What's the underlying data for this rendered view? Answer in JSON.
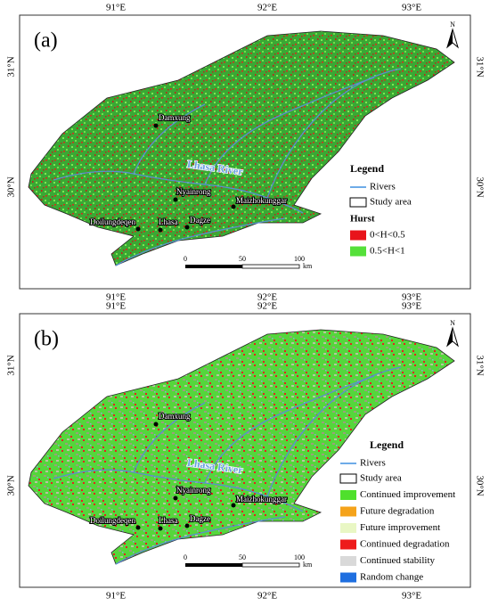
{
  "panels": [
    {
      "label": "(a)",
      "x_labels": [
        "91°E",
        "92°E",
        "93°E"
      ],
      "y_labels": [
        "30°N",
        "31°N"
      ],
      "north": "N",
      "river_label": "Lhasa River",
      "places": [
        "Damxung",
        "Nyainrong",
        "Maizhokunggar",
        "Doilungdeqen",
        "Lhasa",
        "Dagze"
      ],
      "scale": {
        "ticks": [
          "0",
          "50",
          "100"
        ],
        "unit": "km"
      },
      "legend": {
        "title": "Legend",
        "items": [
          "Rivers",
          "Study area"
        ],
        "subtitle": "Hurst",
        "classes": [
          {
            "label": "0<H<0.5",
            "color": "#e8141b"
          },
          {
            "label": "0.5<H<1",
            "color": "#55e03a"
          }
        ]
      }
    },
    {
      "label": "(b)",
      "x_labels": [
        "91°E",
        "92°E",
        "93°E"
      ],
      "y_labels": [
        "30°N",
        "31°N"
      ],
      "north": "N",
      "river_label": "Lhasa River",
      "places": [
        "Damxung",
        "Nyainrong",
        "Maizhokunggar",
        "Doilungdeqen",
        "Lhasa",
        "Dagze"
      ],
      "scale": {
        "ticks": [
          "0",
          "50",
          "100"
        ],
        "unit": "km"
      },
      "legend": {
        "title": "Legend",
        "items": [
          "Rivers",
          "Study area"
        ],
        "classes": [
          {
            "label": "Continued improvement",
            "color": "#4fe02c"
          },
          {
            "label": "Future degradation",
            "color": "#f5a31a"
          },
          {
            "label": "Future improvement",
            "color": "#e9f7c4"
          },
          {
            "label": "Continued degradation",
            "color": "#ee1b1b"
          },
          {
            "label": "Continued stability",
            "color": "#d9d9d9"
          },
          {
            "label": "Random change",
            "color": "#1f6fe0"
          }
        ]
      }
    }
  ]
}
